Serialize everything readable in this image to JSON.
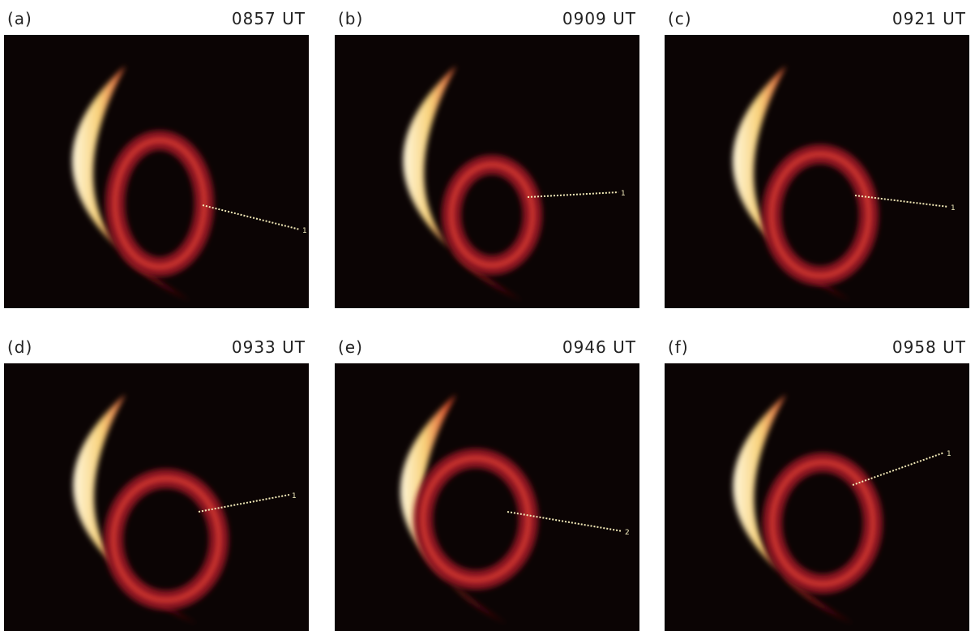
{
  "panels": [
    {
      "label": "(a)",
      "time": "0857 UT",
      "trace_label": "1"
    },
    {
      "label": "(b)",
      "time": "0909 UT",
      "trace_label": "1"
    },
    {
      "label": "(c)",
      "time": "0921 UT",
      "trace_label": "1"
    },
    {
      "label": "(d)",
      "time": "0933 UT",
      "trace_label": "1"
    },
    {
      "label": "(e)",
      "time": "0946 UT",
      "trace_label": "2"
    },
    {
      "label": "(f)",
      "time": "0958 UT",
      "trace_label": "1"
    }
  ]
}
